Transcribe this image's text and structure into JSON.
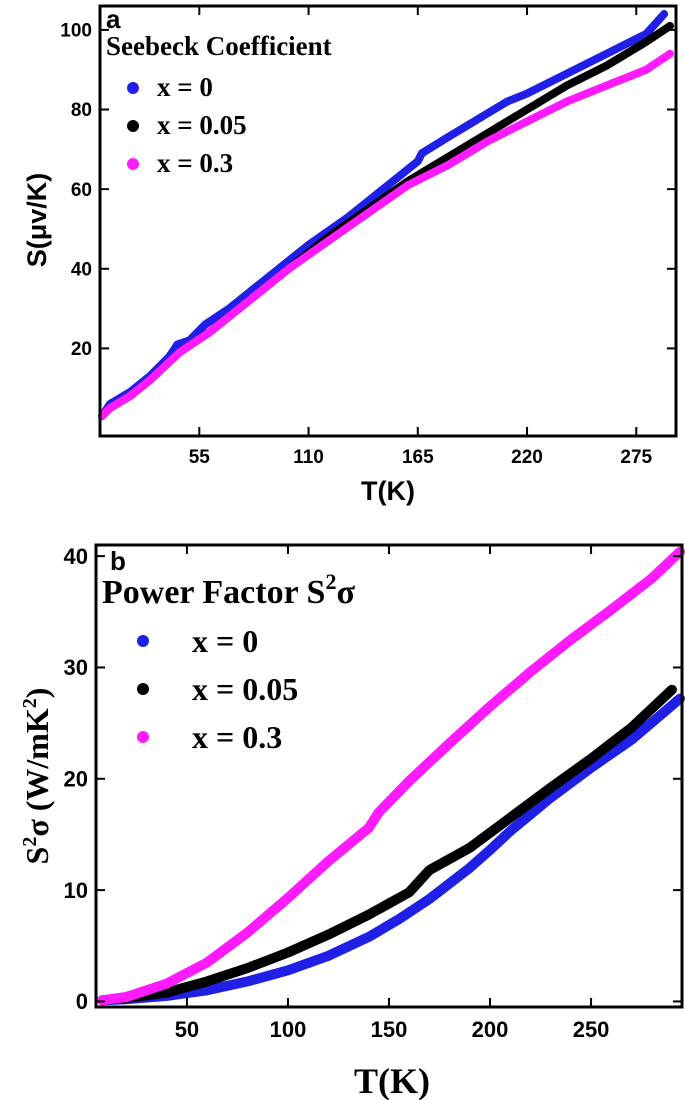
{
  "chart_data": [
    {
      "type": "line",
      "panel_label": "a",
      "title": "Seebeck Coefficient",
      "xlabel": "T(K)",
      "ylabel": "S(μv/K)",
      "xlim": [
        5,
        295
      ],
      "ylim": [
        -2,
        106
      ],
      "xticks": [
        55,
        110,
        165,
        220,
        275
      ],
      "yticks": [
        20,
        40,
        60,
        80,
        100
      ],
      "legend_position": "top-left",
      "series": [
        {
          "name": "x = 0",
          "color": "#1f1fe6",
          "x": [
            6,
            10,
            20,
            30,
            40,
            44,
            50,
            58,
            70,
            90,
            110,
            130,
            150,
            165,
            167,
            180,
            200,
            210,
            220,
            240,
            260,
            280,
            289
          ],
          "y": [
            3,
            6,
            9,
            13,
            18,
            21,
            22,
            26,
            30,
            38,
            46,
            53,
            61,
            67,
            69,
            73,
            79,
            82,
            84,
            89,
            94,
            99,
            104
          ]
        },
        {
          "name": "x = 0.05",
          "color": "#000000",
          "x": [
            6,
            10,
            20,
            30,
            45,
            60,
            80,
            100,
            120,
            140,
            160,
            180,
            200,
            220,
            240,
            260,
            280,
            292
          ],
          "y": [
            3,
            5,
            8,
            12,
            19,
            24,
            32,
            40,
            48,
            55,
            62,
            68,
            74,
            80,
            86,
            91,
            97,
            101
          ]
        },
        {
          "name": "x = 0.3",
          "color": "#ff1aff",
          "x": [
            6,
            10,
            20,
            30,
            45,
            60,
            80,
            100,
            120,
            140,
            160,
            180,
            200,
            220,
            240,
            260,
            280,
            292
          ],
          "y": [
            3,
            5,
            8,
            12,
            19,
            24,
            32,
            40,
            47,
            54,
            61,
            66,
            72,
            77,
            82,
            86,
            90,
            94
          ]
        }
      ]
    },
    {
      "type": "line",
      "panel_label": "b",
      "title": "Power Factor S",
      "title_sup": "2",
      "title_tail": "σ",
      "xlabel": "T(K)",
      "ylabel_main": "S",
      "ylabel_sup": "2",
      "ylabel_tail": "σ (W/mK",
      "ylabel_sup2": "2",
      "ylabel_end": ")",
      "xlim": [
        5,
        295
      ],
      "ylim": [
        -0.5,
        41
      ],
      "xticks": [
        50,
        100,
        150,
        200,
        250
      ],
      "yticks": [
        0,
        10,
        20,
        30,
        40
      ],
      "legend_position": "top-left",
      "series": [
        {
          "name": "x = 0",
          "color": "#1f1fe6",
          "x": [
            8,
            20,
            40,
            60,
            80,
            100,
            120,
            140,
            155,
            170,
            190,
            200,
            210,
            230,
            250,
            270,
            294
          ],
          "y": [
            0.1,
            0.2,
            0.5,
            1.0,
            1.8,
            2.8,
            4.1,
            5.8,
            7.4,
            9.2,
            12.0,
            13.6,
            15.3,
            18.3,
            21.0,
            23.5,
            27.2
          ]
        },
        {
          "name": "x = 0.05",
          "color": "#000000",
          "x": [
            8,
            20,
            40,
            60,
            80,
            100,
            120,
            140,
            160,
            170,
            190,
            210,
            230,
            250,
            270,
            290
          ],
          "y": [
            0.1,
            0.3,
            0.8,
            1.8,
            3.0,
            4.4,
            6.0,
            7.8,
            9.8,
            11.8,
            13.8,
            16.5,
            19.2,
            21.8,
            24.6,
            28.0
          ]
        },
        {
          "name": "x = 0.3",
          "color": "#ff1aff",
          "x": [
            8,
            20,
            40,
            60,
            80,
            100,
            120,
            140,
            145,
            160,
            180,
            200,
            220,
            240,
            260,
            280,
            294
          ],
          "y": [
            0.1,
            0.4,
            1.6,
            3.5,
            6.2,
            9.3,
            12.6,
            15.6,
            17.0,
            19.8,
            23.2,
            26.5,
            29.6,
            32.5,
            35.2,
            38.0,
            40.4
          ]
        }
      ]
    }
  ]
}
